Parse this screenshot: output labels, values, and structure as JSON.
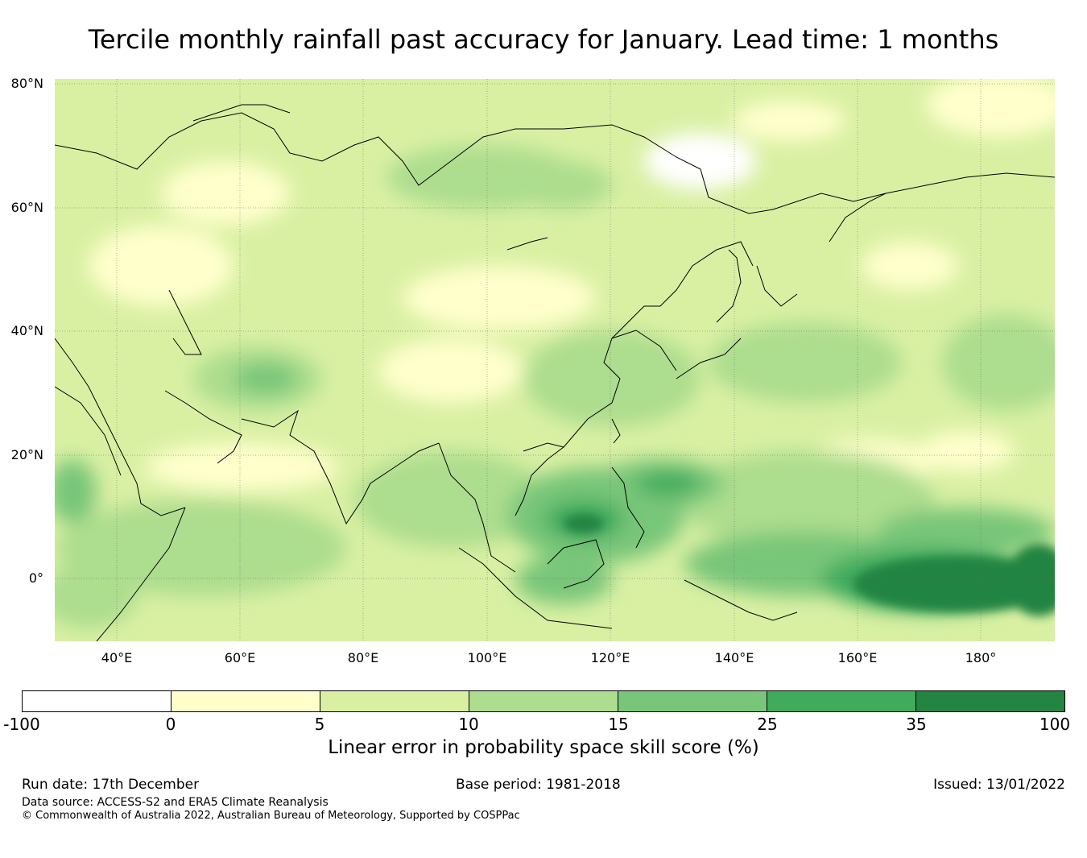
{
  "title": "Tercile monthly rainfall past accuracy for January. Lead time: 1 months",
  "map": {
    "region": "Asia and Western Pacific",
    "lat_labels": [
      "80°N",
      "60°N",
      "40°N",
      "20°N",
      "0°"
    ],
    "lon_labels": [
      "40°E",
      "60°E",
      "80°E",
      "100°E",
      "120°E",
      "140°E",
      "160°E",
      "180°"
    ]
  },
  "colorbar": {
    "ticks": [
      "-100",
      "0",
      "5",
      "10",
      "15",
      "25",
      "35",
      "100"
    ],
    "colors": [
      "#ffffff",
      "#ffffcc",
      "#d9f0a3",
      "#addd8e",
      "#78c679",
      "#41ab5d",
      "#238443"
    ],
    "label": "Linear error in probability space skill score (%)"
  },
  "footer": {
    "run_date": "Run date: 17th December",
    "base_period": "Base period: 1981-2018",
    "issued": "Issued: 13/01/2022",
    "data_source": "Data source: ACCESS-S2 and ERA5 Climate Reanalysis",
    "copyright": "© Commonwealth of Australia 2022, Australian Bureau of Meteorology, Supported by COSPPac"
  }
}
